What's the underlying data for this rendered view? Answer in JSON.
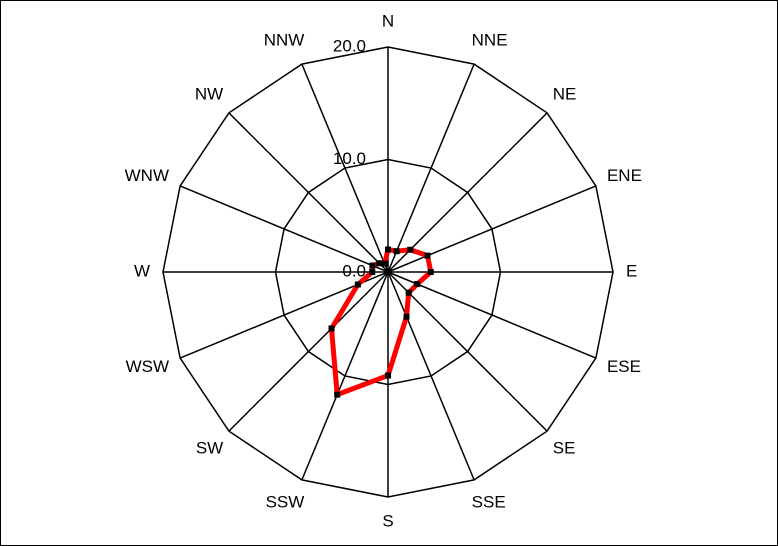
{
  "chart_data": {
    "type": "radar",
    "categories": [
      "N",
      "NNE",
      "NE",
      "ENE",
      "E",
      "ESE",
      "SE",
      "SSE",
      "S",
      "SSW",
      "SW",
      "WSW",
      "W",
      "WNW",
      "NW",
      "NNW"
    ],
    "values": [
      2.0,
      2.0,
      2.8,
      3.8,
      3.8,
      2.8,
      2.6,
      4.3,
      9.2,
      11.8,
      7.1,
      2.9,
      1.4,
      1.5,
      1.1,
      0.8
    ],
    "color": "#ff0000",
    "ylim": [
      0,
      20
    ],
    "yticks": [
      {
        "value": 0,
        "label": "0.0"
      },
      {
        "value": 10,
        "label": "10.0"
      },
      {
        "value": 20,
        "label": "20.0"
      }
    ],
    "grid": true
  }
}
